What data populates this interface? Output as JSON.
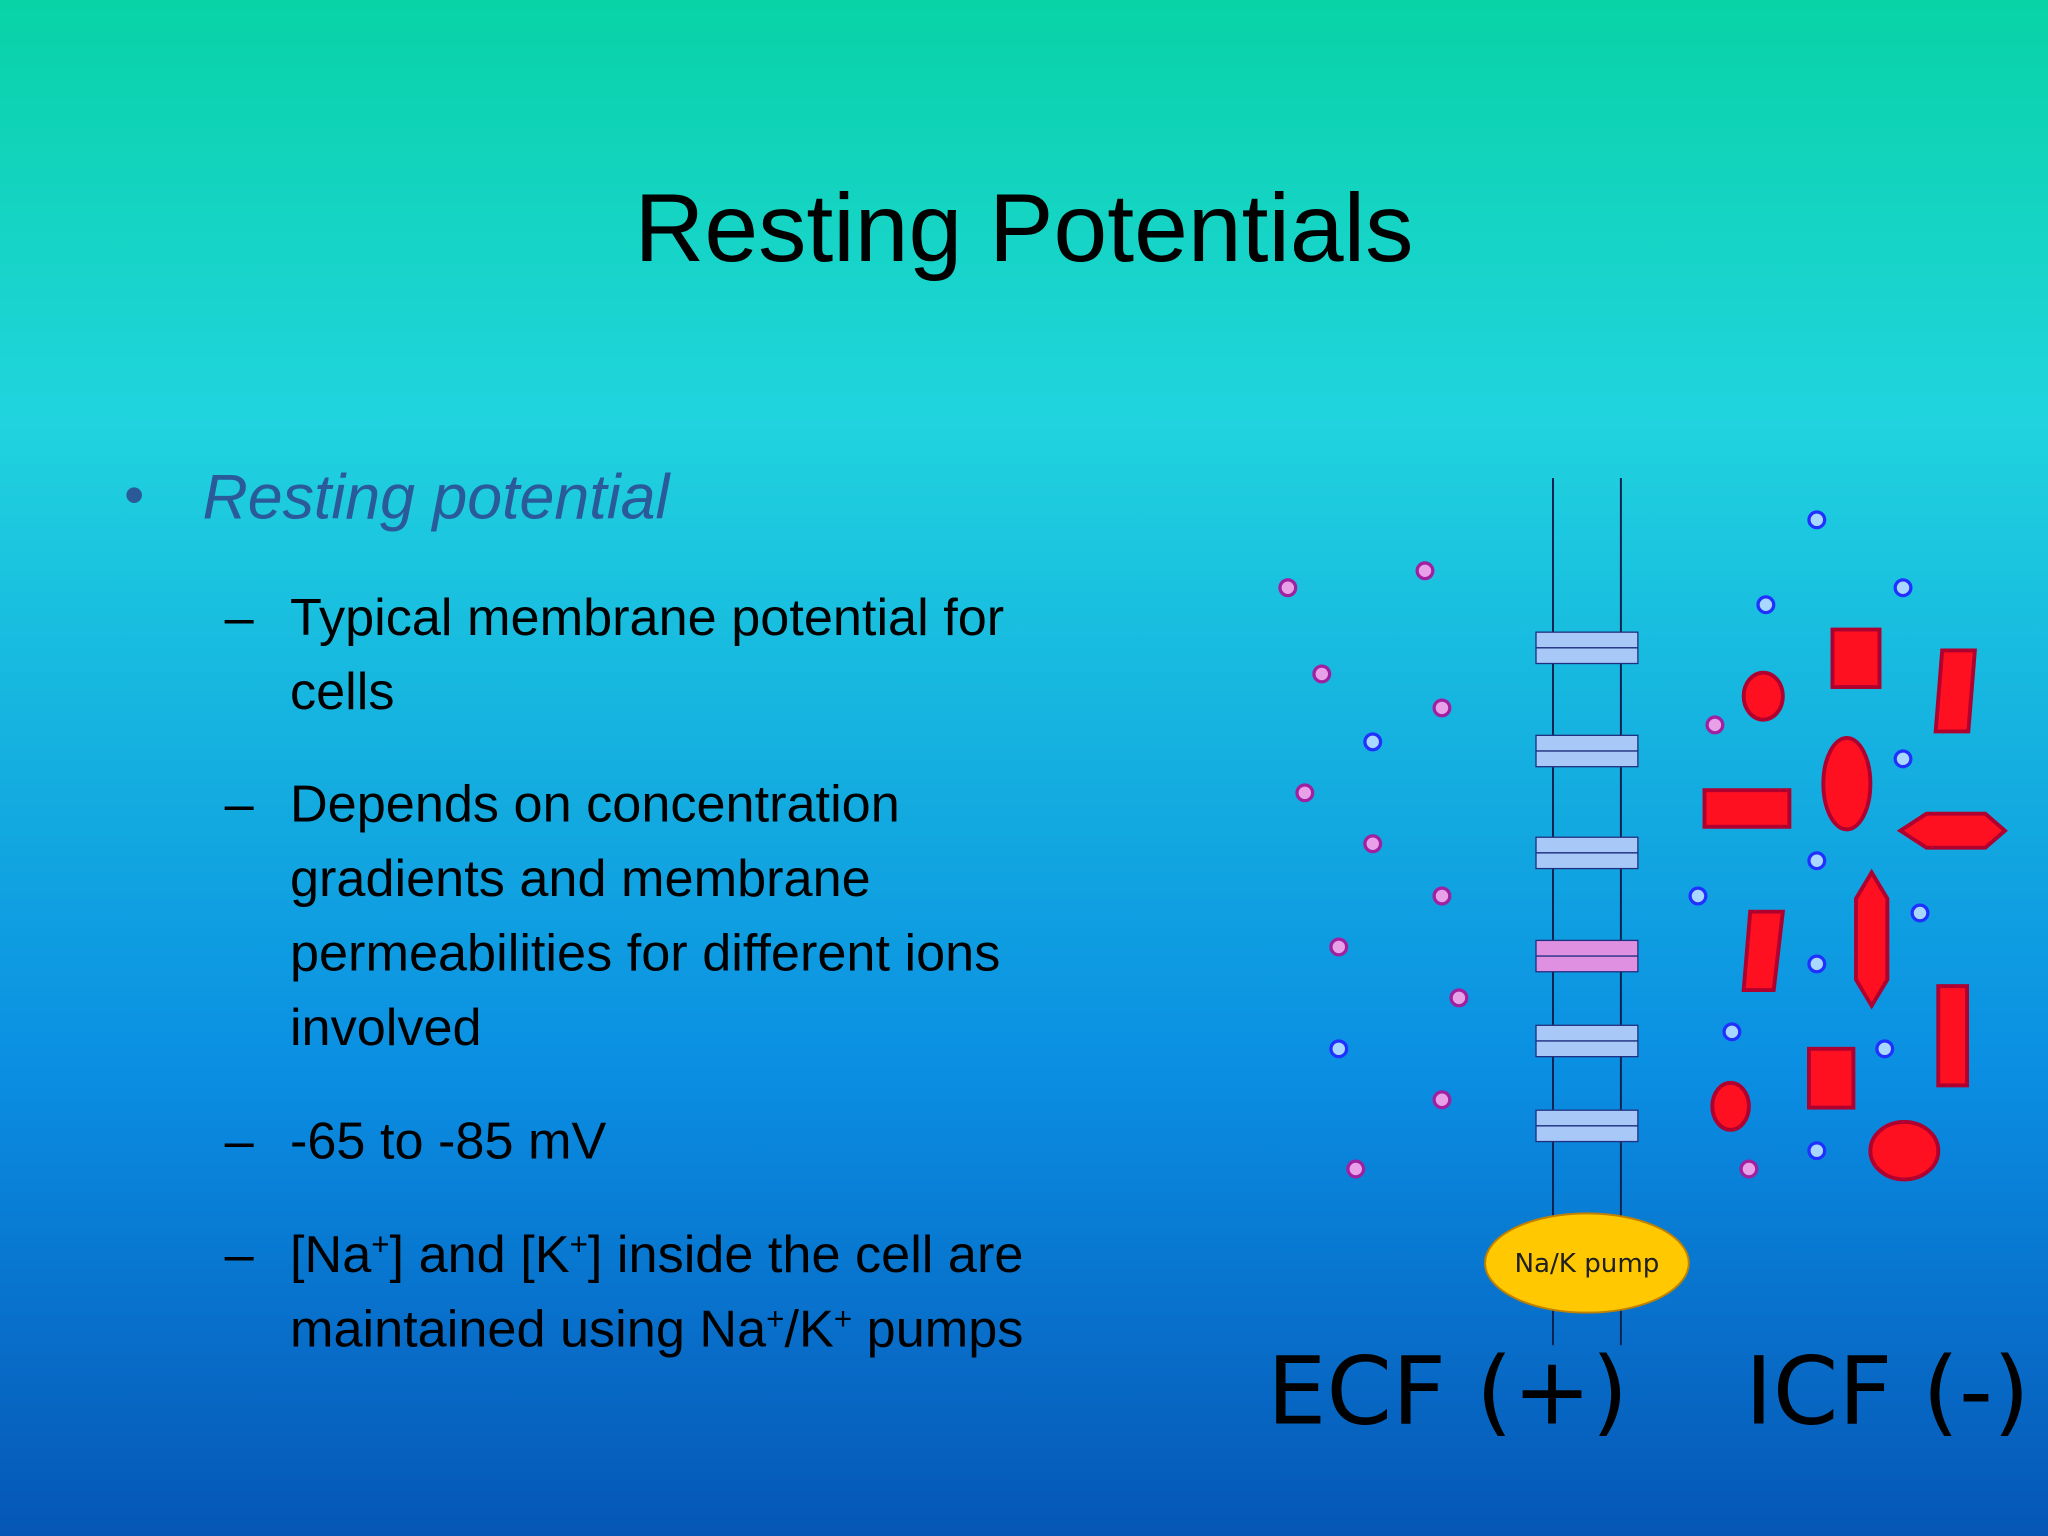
{
  "title": "Resting Potentials",
  "bullet": {
    "text": "Resting potential",
    "items": [
      {
        "lines": [
          [
            "Typical membrane potential for"
          ],
          [
            "cells"
          ]
        ]
      },
      {
        "lines": [
          [
            "Depends on concentration"
          ],
          [
            "gradients and membrane"
          ],
          [
            "permeabilities for different ions"
          ],
          [
            "involved"
          ]
        ]
      },
      {
        "lines": [
          [
            "-65 to -85 mV"
          ]
        ]
      },
      {
        "lines": [
          [
            "[Na",
            "+",
            "] and [K",
            "+",
            "] inside the cell are"
          ],
          [
            "maintained using Na",
            "+",
            "/K",
            "+",
            " pumps"
          ]
        ]
      }
    ]
  },
  "diagram": {
    "pump_label": "Na/K pump",
    "left_label": "ECF (+)",
    "right_label": "ICF (-)"
  }
}
